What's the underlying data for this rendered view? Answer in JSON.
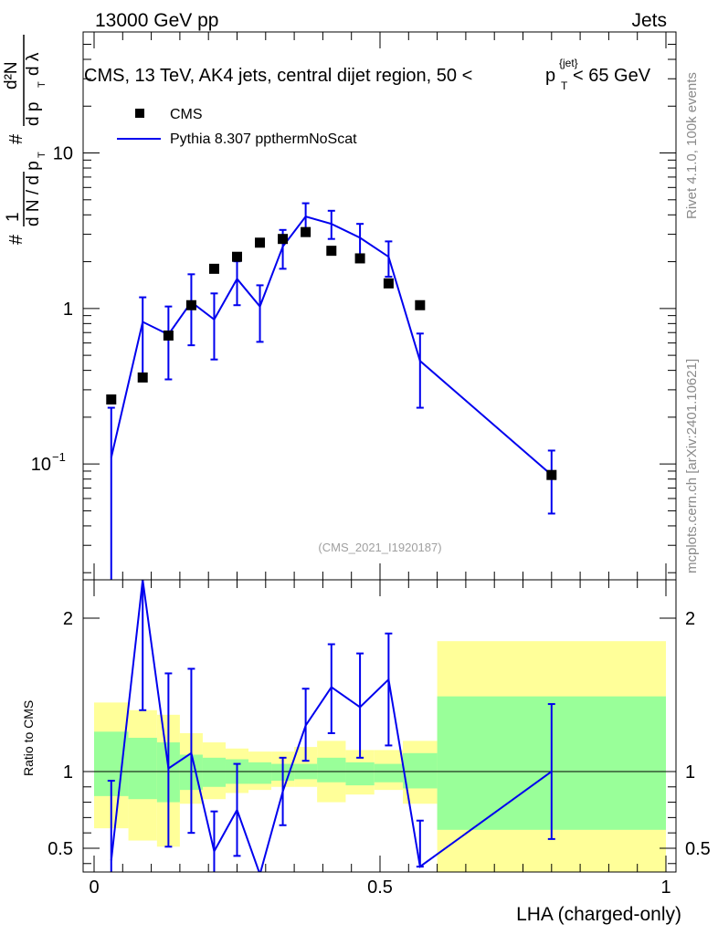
{
  "header": {
    "left": "13000 GeV pp",
    "right": "Jets"
  },
  "side_notes": {
    "top": "Rivet 4.1.0,  100k events",
    "bottom": "mcplots.cern.ch [arXiv:2401.10621]"
  },
  "chart_data": [
    {
      "type": "scatter",
      "panel": "main",
      "title_parts": {
        "main": "CMS, 13 TeV, AK4 jets, central dijet region, 50 <",
        "p": "p",
        "sup": "{jet}",
        "sub": "T",
        "tail": "< 65 GeV"
      },
      "watermark": "(CMS_2021_I1920187)",
      "ylabel_parts": {
        "hash": "#",
        "one": "1",
        "dN": "d N / d p",
        "T": "T",
        "d2N": "d²N",
        "dpT": "d p",
        "dl": "d λ"
      },
      "yscale": "log",
      "ylim": [
        0.018,
        60
      ],
      "xlim": [
        -0.02,
        1.0
      ],
      "y_tick_labels": [
        {
          "value": 0.1,
          "label": "10",
          "exp": "−1"
        },
        {
          "value": 1,
          "label": "1"
        },
        {
          "value": 10,
          "label": "10"
        }
      ],
      "legend": {
        "position": "top-left",
        "entries": [
          "CMS",
          "Pythia 8.307 ppthermNoScat"
        ]
      },
      "series": [
        {
          "name": "CMS",
          "marker": "square",
          "color": "#000000",
          "x": [
            0.03,
            0.085,
            0.13,
            0.17,
            0.21,
            0.25,
            0.29,
            0.33,
            0.37,
            0.415,
            0.465,
            0.515,
            0.57,
            0.8
          ],
          "y": [
            0.26,
            0.36,
            0.67,
            1.05,
            1.8,
            2.15,
            2.65,
            2.8,
            3.1,
            2.35,
            2.1,
            1.45,
            1.05,
            0.085
          ]
        },
        {
          "name": "Pythia 8.307 ppthermNoScat",
          "marker": "line",
          "color": "#0000ee",
          "x": [
            0.03,
            0.085,
            0.13,
            0.17,
            0.21,
            0.25,
            0.29,
            0.33,
            0.37,
            0.415,
            0.465,
            0.515,
            0.57,
            0.8
          ],
          "y": [
            0.11,
            0.82,
            0.68,
            1.1,
            0.85,
            1.55,
            1.03,
            2.5,
            3.9,
            3.5,
            2.85,
            2.15,
            0.46,
            0.085
          ],
          "yerr_low": [
            0.1,
            0.44,
            0.33,
            0.52,
            0.38,
            0.5,
            0.42,
            0.7,
            0.8,
            0.7,
            0.75,
            0.55,
            0.23,
            0.037
          ],
          "yerr_high": [
            0.12,
            0.36,
            0.35,
            0.56,
            0.4,
            0.46,
            0.38,
            0.7,
            0.85,
            0.75,
            0.65,
            0.55,
            0.23,
            0.037
          ]
        }
      ]
    },
    {
      "type": "line",
      "panel": "ratio",
      "ylabel": "Ratio to CMS",
      "xlabel": "LHA (charged-only)",
      "ylim": [
        0.345,
        2.25
      ],
      "xlim": [
        -0.02,
        1.0
      ],
      "x_tick_labels": [
        {
          "value": 0,
          "label": "0"
        },
        {
          "value": 0.5,
          "label": "0.5"
        },
        {
          "value": 1,
          "label": "1"
        }
      ],
      "y_tick_labels": [
        {
          "value": 0.5,
          "label": "0.5"
        },
        {
          "value": 1,
          "label": "1"
        },
        {
          "value": 2,
          "label": "2"
        }
      ],
      "bands": {
        "bin_edges": [
          0,
          0.06,
          0.11,
          0.15,
          0.19,
          0.23,
          0.27,
          0.31,
          0.35,
          0.39,
          0.44,
          0.49,
          0.54,
          0.6,
          1.0
        ],
        "green_low": [
          0.84,
          0.82,
          0.8,
          0.88,
          0.9,
          0.92,
          0.92,
          0.94,
          0.95,
          0.93,
          0.91,
          0.93,
          0.89,
          0.62
        ],
        "green_high": [
          1.26,
          1.22,
          1.19,
          1.11,
          1.09,
          1.08,
          1.06,
          1.05,
          1.05,
          1.09,
          1.06,
          1.05,
          1.12,
          1.49
        ],
        "yellow_low": [
          0.63,
          0.55,
          0.51,
          0.79,
          0.82,
          0.86,
          0.88,
          0.9,
          0.9,
          0.8,
          0.85,
          0.88,
          0.79,
          0.34
        ],
        "yellow_high": [
          1.45,
          1.4,
          1.37,
          1.25,
          1.19,
          1.15,
          1.13,
          1.13,
          1.16,
          1.2,
          1.14,
          1.14,
          1.2,
          1.85
        ]
      },
      "reference_line": 1,
      "series": [
        {
          "name": "Pythia 8.307 ppthermNoScat",
          "color": "#0000ee",
          "x": [
            0.03,
            0.085,
            0.13,
            0.17,
            0.21,
            0.25,
            0.29,
            0.33,
            0.37,
            0.415,
            0.465,
            0.515,
            0.57,
            0.8
          ],
          "y": [
            0.42,
            2.25,
            1.02,
            1.12,
            0.48,
            0.75,
            0.33,
            0.87,
            1.3,
            1.55,
            1.42,
            1.6,
            0.38,
            1.0
          ],
          "yerr_low": [
            0.42,
            0.85,
            0.51,
            0.52,
            0.26,
            0.3,
            0.0,
            0.22,
            0.23,
            0.3,
            0.33,
            0.43,
            0.0,
            0.44
          ],
          "yerr_high": [
            0.52,
            0.85,
            0.62,
            0.55,
            0.26,
            0.3,
            0.0,
            0.22,
            0.24,
            0.28,
            0.35,
            0.3,
            0.3,
            0.44
          ]
        }
      ]
    }
  ]
}
